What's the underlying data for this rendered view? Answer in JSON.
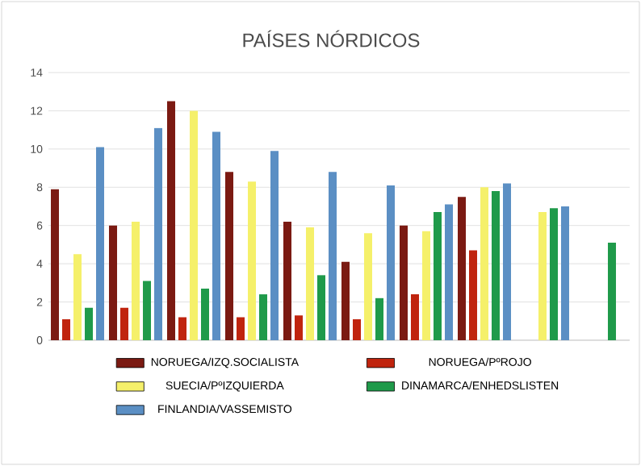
{
  "chart_data": {
    "type": "bar",
    "title": "PAÍSES NÓRDICOS",
    "categories": [
      null,
      null,
      null,
      null,
      null,
      null,
      null,
      null,
      null,
      null
    ],
    "ylim": [
      0,
      14
    ],
    "yticks": [
      0,
      2,
      4,
      6,
      8,
      10,
      12,
      14
    ],
    "grid": "y",
    "legend": "bottom",
    "series": [
      {
        "name": "NORUEGA/IZQ.SOCIALISTA",
        "color": "#7b1a12",
        "values": [
          7.9,
          6.0,
          12.5,
          8.8,
          6.2,
          4.1,
          6.0,
          7.5,
          null,
          null
        ]
      },
      {
        "name": "NORUEGA/PºROJO",
        "color": "#c0240e",
        "values": [
          1.1,
          1.7,
          1.2,
          1.2,
          1.3,
          1.1,
          2.4,
          4.7,
          null,
          null
        ]
      },
      {
        "name": "SUECIA/PºIZQUIERDA",
        "color": "#f5f06a",
        "values": [
          4.5,
          6.2,
          12.0,
          8.3,
          5.9,
          5.6,
          5.7,
          8.0,
          6.7,
          null
        ]
      },
      {
        "name": "DINAMARCA/ENHEDSLISTEN",
        "color": "#1f9a4a",
        "values": [
          1.7,
          3.1,
          2.7,
          2.4,
          3.4,
          2.2,
          6.7,
          7.8,
          6.9,
          5.1
        ]
      },
      {
        "name": "FINLANDIA/VASSEMISTO",
        "color": "#5b8fc4",
        "values": [
          10.1,
          11.1,
          10.9,
          9.9,
          8.8,
          8.1,
          7.1,
          8.2,
          7.0,
          null
        ]
      }
    ]
  }
}
